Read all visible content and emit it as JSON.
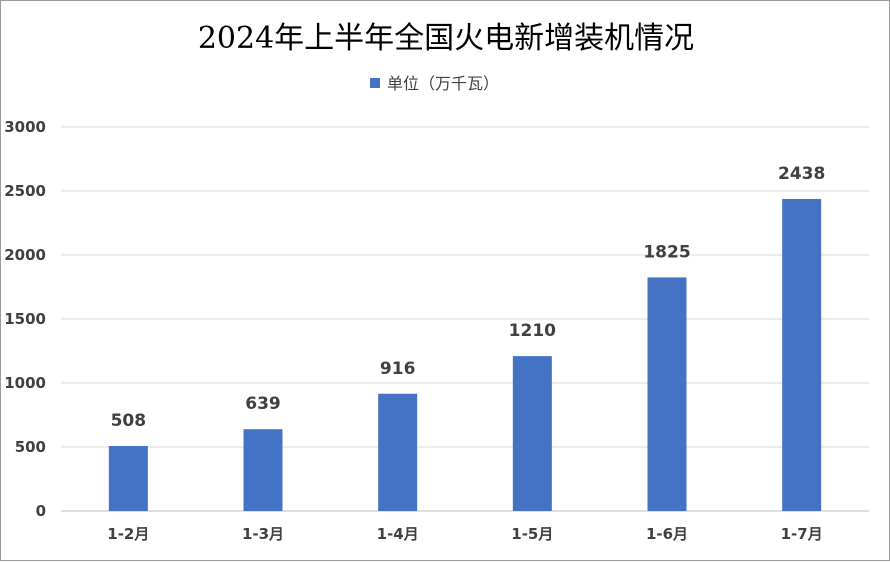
{
  "chart_data": {
    "type": "bar",
    "title": "2024年上半年全国火电新增装机情况",
    "categories": [
      "1-2月",
      "1-3月",
      "1-4月",
      "1-5月",
      "1-6月",
      "1-7月"
    ],
    "series": [
      {
        "name": "单位（万千瓦）",
        "values": [
          508,
          639,
          916,
          1210,
          1825,
          2438
        ],
        "color": "#4472C4"
      }
    ],
    "ylim": [
      0,
      3000
    ],
    "yticks": [
      0,
      500,
      1000,
      1500,
      2000,
      2500,
      3000
    ],
    "grid": true,
    "legend": "top-center",
    "data_labels": true
  }
}
